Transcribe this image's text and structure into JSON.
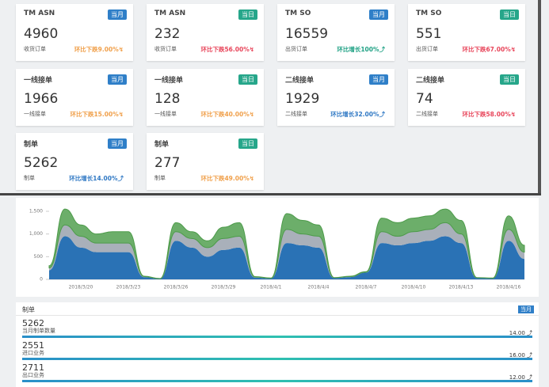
{
  "cards": [
    {
      "title": "TM ASN",
      "badge": "当月",
      "badge_color": "#2f7fc8",
      "value": 4960,
      "label": "收货订单",
      "change": "环比下跌9.00%↯",
      "change_color": "#f0a04b"
    },
    {
      "title": "TM ASN",
      "badge": "当日",
      "badge_color": "#26a68a",
      "value": 232,
      "label": "收货订单",
      "change": "环比下跌56.00%↯",
      "change_color": "#e8455a"
    },
    {
      "title": "TM SO",
      "badge": "当月",
      "badge_color": "#2f7fc8",
      "value": 16559,
      "label": "出货订单",
      "change": "环比增长100%⤴",
      "change_color": "#1fa184"
    },
    {
      "title": "TM SO",
      "badge": "当日",
      "badge_color": "#26a68a",
      "value": 551,
      "label": "出货订单",
      "change": "环比下跌67.00%↯",
      "change_color": "#e8455a"
    },
    {
      "title": "一线接单",
      "badge": "当月",
      "badge_color": "#2f7fc8",
      "value": 1966,
      "label": "一线接单",
      "change": "环比下跌15.00%↯",
      "change_color": "#f0a04b"
    },
    {
      "title": "一线接单",
      "badge": "当日",
      "badge_color": "#26a68a",
      "value": 128,
      "label": "一线接单",
      "change": "环比下跌40.00%↯",
      "change_color": "#f0a04b"
    },
    {
      "title": "二线接单",
      "badge": "当月",
      "badge_color": "#2f7fc8",
      "value": 1929,
      "label": "二线接单",
      "change": "环比增长32.00%⤴",
      "change_color": "#2f78c4"
    },
    {
      "title": "二线接单",
      "badge": "当日",
      "badge_color": "#26a68a",
      "value": 74,
      "label": "二线接单",
      "change": "环比下跌58.00%↯",
      "change_color": "#e8455a"
    },
    {
      "title": "制单",
      "badge": "当月",
      "badge_color": "#2f7fc8",
      "value": 5262,
      "label": "制单",
      "change": "环比增长14.00%⤴",
      "change_color": "#2f78c4"
    },
    {
      "title": "制单",
      "badge": "当日",
      "badge_color": "#26a68a",
      "value": 277,
      "label": "制单",
      "change": "环比下跌49.00%↯",
      "change_color": "#f0a04b"
    }
  ],
  "chart_data": {
    "type": "stacked_area",
    "categories": [
      null,
      null,
      "2018/3/20",
      null,
      null,
      "2018/3/23",
      null,
      null,
      "2018/3/26",
      null,
      null,
      "2018/3/29",
      null,
      null,
      "2018/4/1",
      null,
      null,
      "2018/4/4",
      null,
      null,
      "2018/4/7",
      null,
      null,
      "2018/4/10",
      null,
      null,
      "2018/4/13",
      null,
      null,
      "2018/4/16",
      null
    ],
    "series": [
      {
        "color": "#2a72b5",
        "values": [
          200,
          950,
          700,
          600,
          600,
          600,
          50,
          10,
          850,
          700,
          500,
          650,
          700,
          40,
          20,
          800,
          750,
          700,
          30,
          50,
          150,
          800,
          750,
          800,
          850,
          950,
          800,
          30,
          20,
          850,
          450
        ]
      },
      {
        "color": "#a9b0ba",
        "values": [
          50,
          250,
          250,
          200,
          200,
          200,
          10,
          5,
          200,
          200,
          200,
          250,
          250,
          10,
          5,
          300,
          250,
          250,
          5,
          10,
          10,
          250,
          200,
          250,
          250,
          300,
          200,
          5,
          5,
          250,
          150
        ]
      },
      {
        "color": "#6cae6a",
        "values": [
          50,
          350,
          250,
          200,
          250,
          250,
          10,
          5,
          200,
          150,
          150,
          250,
          300,
          10,
          5,
          350,
          300,
          250,
          5,
          10,
          10,
          300,
          300,
          300,
          300,
          300,
          300,
          5,
          5,
          300,
          150
        ]
      }
    ],
    "ylim": [
      0,
      1600
    ],
    "yticks": [
      0,
      500,
      {
        "value": 1000,
        "label": "1,000"
      },
      {
        "value": 1500,
        "label": "1,500"
      }
    ]
  },
  "panel": {
    "title": "制单",
    "badge": "当月",
    "items": [
      {
        "value": 5262,
        "label": "当月制单数量",
        "rate": "14.00 ⤴"
      },
      {
        "value": 2551,
        "label": "进口业务",
        "rate": "16.00 ⤴"
      },
      {
        "value": 2711,
        "label": "出口业务",
        "rate": "12.00 ⤴"
      }
    ]
  }
}
